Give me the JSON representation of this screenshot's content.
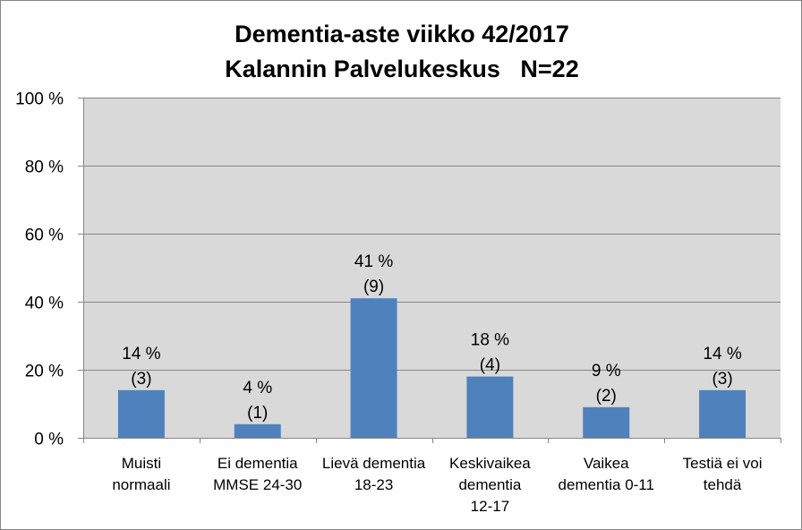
{
  "chart_data": {
    "type": "bar",
    "title": "Dementia-aste viikko 42/2017",
    "subtitle": "Kalannin Palvelukeskus   N=22",
    "categories": [
      [
        "Muisti",
        "normaali"
      ],
      [
        "Ei dementia",
        "MMSE 24-30"
      ],
      [
        "Lievä dementia",
        "18-23"
      ],
      [
        "Keskivaikea",
        "dementia",
        "12-17"
      ],
      [
        "Vaikea",
        "dementia 0-11"
      ],
      [
        "Testiä ei voi",
        "tehdä"
      ]
    ],
    "values": [
      14,
      4,
      41,
      18,
      9,
      14
    ],
    "data_labels": [
      [
        "14 %",
        "(3)"
      ],
      [
        "4 %",
        "(1)"
      ],
      [
        "41 %",
        "(9)"
      ],
      [
        "18 %",
        "(4)"
      ],
      [
        "9 %",
        "(2)"
      ],
      [
        "14 %",
        "(3)"
      ]
    ],
    "ylim": [
      0,
      100
    ],
    "yticks": [
      0,
      20,
      40,
      60,
      80,
      100
    ],
    "ytick_labels": [
      "0 %",
      "20 %",
      "40 %",
      "60 %",
      "80 %",
      "100 %"
    ],
    "grid": true,
    "colors": {
      "bar": "#4f81bd",
      "plot_bg": "#d9d9d9",
      "grid": "#868686"
    }
  }
}
